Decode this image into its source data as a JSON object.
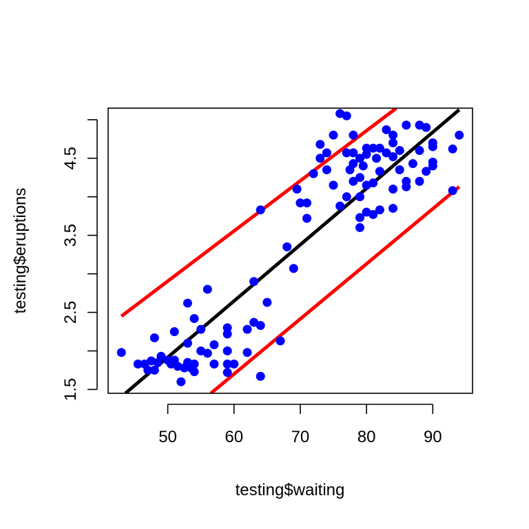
{
  "chart_data": {
    "type": "scatter",
    "title": "",
    "xlabel": "testing$waiting",
    "ylabel": "testing$eruptions",
    "xlim": [
      41,
      96
    ],
    "ylim": [
      1.45,
      5.15
    ],
    "x_ticks": [
      50,
      60,
      70,
      80,
      90
    ],
    "x_tick_labels": [
      "50",
      "60",
      "70",
      "80",
      "90"
    ],
    "y_ticks": [
      1.5,
      2.0,
      2.5,
      3.0,
      3.5,
      4.0,
      4.5,
      5.0
    ],
    "y_tick_labels": [
      "1.5",
      "",
      "2.5",
      "",
      "3.5",
      "",
      "4.5",
      ""
    ],
    "grid": false,
    "legend": "none",
    "colors": {
      "points": "#0000ff",
      "fit_line": "#000000",
      "interval_lines": "#ff0000"
    },
    "points": [
      [
        43,
        1.98
      ],
      [
        45.5,
        1.83
      ],
      [
        46.5,
        1.83
      ],
      [
        47,
        1.75
      ],
      [
        47.5,
        1.87
      ],
      [
        48,
        2.17
      ],
      [
        48,
        1.75
      ],
      [
        48.5,
        1.85
      ],
      [
        49,
        1.93
      ],
      [
        50,
        1.88
      ],
      [
        50.5,
        1.83
      ],
      [
        51,
        2.25
      ],
      [
        51,
        1.88
      ],
      [
        51.5,
        1.8
      ],
      [
        52,
        1.6
      ],
      [
        52.5,
        1.78
      ],
      [
        53,
        2.62
      ],
      [
        53,
        1.85
      ],
      [
        53,
        2.1
      ],
      [
        53.5,
        1.78
      ],
      [
        54,
        2.42
      ],
      [
        54,
        1.83
      ],
      [
        54,
        1.73
      ],
      [
        55,
        2.28
      ],
      [
        55,
        2.0
      ],
      [
        56,
        1.97
      ],
      [
        56,
        2.8
      ],
      [
        57,
        2.08
      ],
      [
        57,
        1.83
      ],
      [
        59,
        2.3
      ],
      [
        59,
        2.22
      ],
      [
        59,
        2.0
      ],
      [
        59,
        1.83
      ],
      [
        59,
        1.72
      ],
      [
        60,
        1.83
      ],
      [
        62,
        2.28
      ],
      [
        62,
        1.98
      ],
      [
        63,
        2.9
      ],
      [
        63,
        2.37
      ],
      [
        64,
        2.33
      ],
      [
        64,
        3.83
      ],
      [
        64,
        1.67
      ],
      [
        65,
        2.63
      ],
      [
        67,
        2.13
      ],
      [
        68,
        3.35
      ],
      [
        69,
        3.07
      ],
      [
        69.5,
        4.1
      ],
      [
        70,
        3.92
      ],
      [
        71,
        3.92
      ],
      [
        71,
        3.72
      ],
      [
        72,
        4.3
      ],
      [
        73,
        4.68
      ],
      [
        73,
        4.5
      ],
      [
        74,
        4.57
      ],
      [
        74,
        4.35
      ],
      [
        75,
        4.8
      ],
      [
        75,
        4.15
      ],
      [
        76,
        5.08
      ],
      [
        76,
        3.88
      ],
      [
        77,
        5.05
      ],
      [
        77,
        4.57
      ],
      [
        77,
        4.0
      ],
      [
        77.5,
        4.35
      ],
      [
        78,
        4.8
      ],
      [
        78,
        4.57
      ],
      [
        78,
        4.43
      ],
      [
        78,
        4.2
      ],
      [
        79,
        4.5
      ],
      [
        79,
        4.25
      ],
      [
        79,
        4.0
      ],
      [
        79,
        3.73
      ],
      [
        79,
        3.6
      ],
      [
        79.5,
        4.4
      ],
      [
        80,
        4.63
      ],
      [
        80,
        4.55
      ],
      [
        80,
        4.15
      ],
      [
        80,
        3.8
      ],
      [
        81,
        4.63
      ],
      [
        81,
        4.18
      ],
      [
        81,
        3.77
      ],
      [
        81.5,
        4.5
      ],
      [
        82,
        4.63
      ],
      [
        82,
        4.33
      ],
      [
        82,
        3.83
      ],
      [
        83,
        4.87
      ],
      [
        83,
        4.57
      ],
      [
        84,
        4.8
      ],
      [
        84,
        4.7
      ],
      [
        84,
        4.52
      ],
      [
        84,
        4.1
      ],
      [
        84,
        3.85
      ],
      [
        85,
        4.6
      ],
      [
        85,
        4.35
      ],
      [
        86,
        4.93
      ],
      [
        86,
        4.2
      ],
      [
        86,
        4.13
      ],
      [
        87,
        4.43
      ],
      [
        88,
        4.93
      ],
      [
        88,
        4.6
      ],
      [
        88,
        4.2
      ],
      [
        89,
        4.9
      ],
      [
        89,
        4.33
      ],
      [
        90,
        4.7
      ],
      [
        90,
        4.65
      ],
      [
        90,
        4.45
      ],
      [
        90,
        4.4
      ],
      [
        93,
        4.62
      ],
      [
        93,
        4.08
      ],
      [
        94,
        4.8
      ]
    ],
    "lines": [
      {
        "role": "fit",
        "color": "#000000",
        "x": [
          43.6,
          94
        ],
        "y": [
          1.45,
          5.13
        ]
      },
      {
        "role": "upper",
        "color": "#ff0000",
        "x": [
          43,
          84.5
        ],
        "y": [
          2.45,
          5.15
        ]
      },
      {
        "role": "lower",
        "color": "#ff0000",
        "x": [
          56.5,
          94
        ],
        "y": [
          1.45,
          4.13
        ]
      }
    ]
  }
}
